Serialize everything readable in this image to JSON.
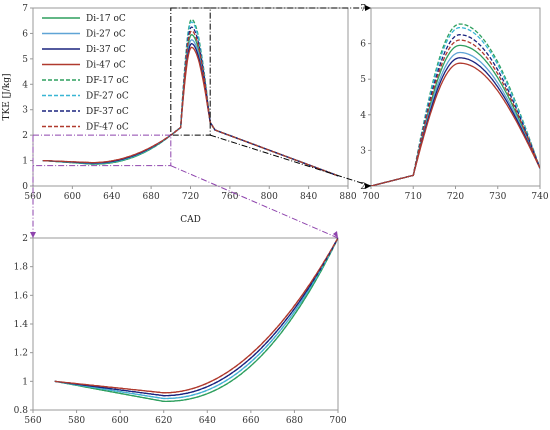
{
  "chart_data": [
    {
      "id": "main",
      "type": "line",
      "xlabel": "CAD",
      "ylabel": "TKE [J/kg]",
      "xlim": [
        560,
        880
      ],
      "ylim": [
        0,
        7
      ],
      "xticks": [
        560,
        600,
        640,
        680,
        720,
        760,
        800,
        840,
        880
      ],
      "yticks": [
        0,
        1,
        2,
        3,
        4,
        5,
        6,
        7
      ],
      "grid": false,
      "legend": "top-left",
      "series": [
        {
          "name": "Di-17 oC",
          "color": "#2e9f5e",
          "dash": "solid",
          "peak": 5.95
        },
        {
          "name": "Di-27 oC",
          "color": "#5fa4d6",
          "dash": "solid",
          "peak": 5.75
        },
        {
          "name": "Di-37 oC",
          "color": "#1a237e",
          "dash": "solid",
          "peak": 5.6
        },
        {
          "name": "Di-47 oC",
          "color": "#b03a2e",
          "dash": "solid",
          "peak": 5.45
        },
        {
          "name": "DF-17 oC",
          "color": "#2e9f5e",
          "dash": "dashed",
          "peak": 6.55
        },
        {
          "name": "DF-27 oC",
          "color": "#39b6d4",
          "dash": "dashed",
          "peak": 6.45
        },
        {
          "name": "DF-37 oC",
          "color": "#1a237e",
          "dash": "dashed",
          "peak": 6.25
        },
        {
          "name": "DF-47 oC",
          "color": "#b03a2e",
          "dash": "dashed",
          "peak": 6.1
        }
      ]
    },
    {
      "id": "zoom-right",
      "type": "line",
      "xlim": [
        700,
        740
      ],
      "ylim": [
        2,
        7
      ],
      "xticks": [
        700,
        710,
        720,
        730,
        740
      ],
      "yticks": [
        2,
        3,
        4,
        5,
        6,
        7
      ]
    },
    {
      "id": "zoom-bottom",
      "type": "line",
      "xlim": [
        560,
        700
      ],
      "ylim": [
        0.8,
        2
      ],
      "xticks": [
        560,
        580,
        600,
        620,
        640,
        660,
        680,
        700
      ],
      "yticks": [
        0.8,
        1,
        1.2,
        1.4,
        1.6,
        1.8,
        2
      ],
      "min_values": [
        0.86,
        0.88,
        0.9,
        0.92
      ]
    }
  ]
}
